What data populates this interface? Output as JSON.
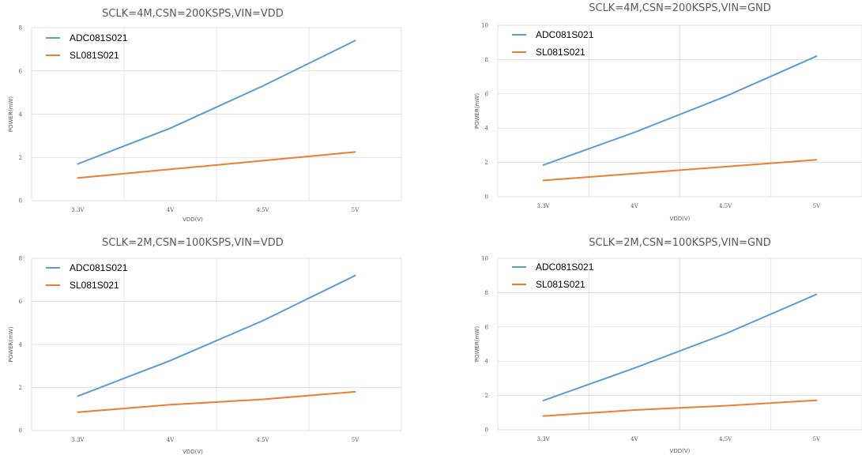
{
  "chart_data": [
    {
      "type": "line",
      "title": "SCLK=4M,CSN=200KSPS,VIN=VDD",
      "xlabel": "VDD(V)",
      "ylabel": "POWER(mW)",
      "categories": [
        "3.3V",
        "4V",
        "4.5V",
        "5V"
      ],
      "ylim": [
        0,
        8
      ],
      "yticks": [
        0,
        2,
        4,
        6,
        8
      ],
      "grid": true,
      "legend": "top-left",
      "series": [
        {
          "name": "ADC081S021",
          "color": "#5b9bd5",
          "values": [
            1.7,
            3.35,
            5.3,
            7.4
          ]
        },
        {
          "name": "SL081S021",
          "color": "#ed7d31",
          "values": [
            1.05,
            1.45,
            1.85,
            2.25
          ]
        }
      ]
    },
    {
      "type": "line",
      "title": "SCLK=4M,CSN=200KSPS,VIN=GND",
      "xlabel": "VDD(V)",
      "ylabel": "POWER(mW)",
      "categories": [
        "3.3V",
        "4V",
        "4.5V",
        "5V"
      ],
      "ylim": [
        0,
        10
      ],
      "yticks": [
        0,
        2,
        4,
        6,
        8,
        10
      ],
      "grid": true,
      "legend": "top-left",
      "series": [
        {
          "name": "ADC081S021",
          "color": "#5b9bd5",
          "values": [
            1.85,
            3.75,
            5.85,
            8.2
          ]
        },
        {
          "name": "SL081S021",
          "color": "#ed7d31",
          "values": [
            0.95,
            1.35,
            1.75,
            2.15
          ]
        }
      ]
    },
    {
      "type": "line",
      "title": "SCLK=2M,CSN=100KSPS,VIN=VDD",
      "xlabel": "VDD(V)",
      "ylabel": "POWER(mW)",
      "categories": [
        "3.3V",
        "4V",
        "4.5V",
        "5V"
      ],
      "ylim": [
        0,
        8
      ],
      "yticks": [
        0,
        2,
        4,
        6,
        8
      ],
      "grid": true,
      "legend": "top-left",
      "series": [
        {
          "name": "ADC081S021",
          "color": "#5b9bd5",
          "values": [
            1.6,
            3.25,
            5.1,
            7.2
          ]
        },
        {
          "name": "SL081S021",
          "color": "#ed7d31",
          "values": [
            0.85,
            1.2,
            1.45,
            1.8
          ]
        }
      ]
    },
    {
      "type": "line",
      "title": "SCLK=2M,CSN=100KSPS,VIN=GND",
      "xlabel": "VDD(V)",
      "ylabel": "POWER(mW)",
      "categories": [
        "3.3V",
        "4V",
        "4.5V",
        "5V"
      ],
      "ylim": [
        0,
        10
      ],
      "yticks": [
        0,
        2,
        4,
        6,
        8,
        10
      ],
      "grid": true,
      "legend": "top-left",
      "series": [
        {
          "name": "ADC081S021",
          "color": "#5b9bd5",
          "values": [
            1.7,
            3.6,
            5.6,
            7.9
          ]
        },
        {
          "name": "SL081S021",
          "color": "#ed7d31",
          "values": [
            0.8,
            1.15,
            1.4,
            1.72
          ]
        }
      ]
    }
  ]
}
